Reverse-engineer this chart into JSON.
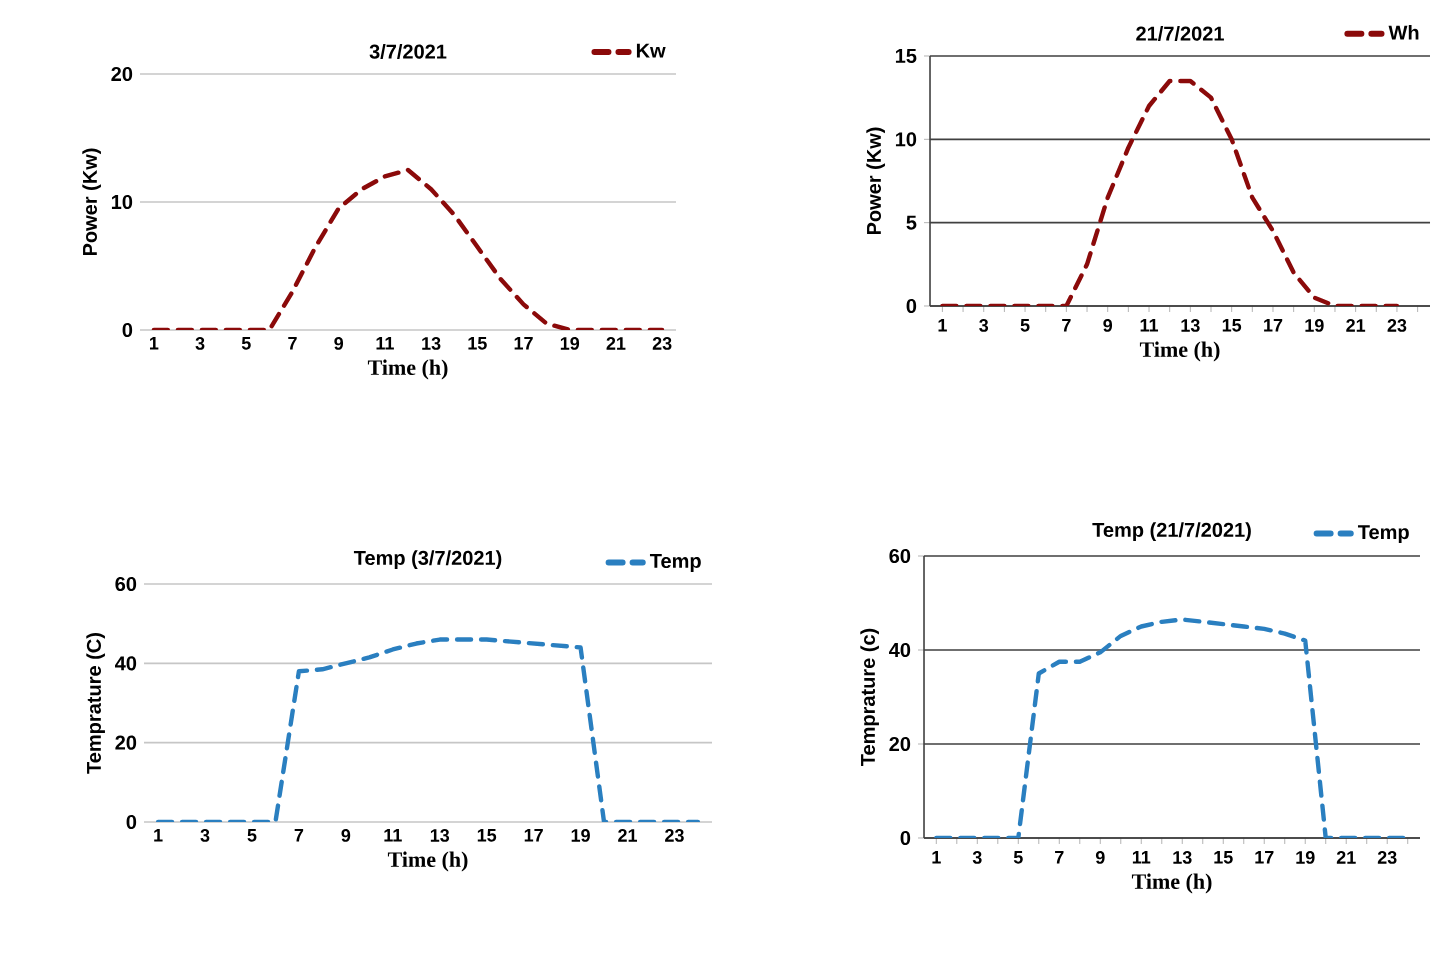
{
  "chart_data": [
    {
      "type": "line",
      "title": "3/7/2021",
      "xlabel": "Time (h)",
      "ylabel": "Power (Kw)",
      "categories": [
        "1",
        null,
        "3",
        null,
        "5",
        null,
        "7",
        null,
        "9",
        null,
        "11",
        null,
        "13",
        null,
        "15",
        null,
        "17",
        null,
        "19",
        null,
        "21",
        null,
        "23"
      ],
      "series": [
        {
          "name": "Kw",
          "color": "#8b0a0a",
          "values": [
            0,
            0,
            0,
            0,
            0,
            0,
            3,
            6.5,
            9.5,
            11,
            12,
            12.5,
            11,
            9,
            6.5,
            4,
            2,
            0.5,
            0,
            0,
            0,
            0,
            0
          ]
        }
      ],
      "ylim": [
        0,
        20
      ],
      "yticks": [
        0,
        10,
        20
      ],
      "grid": "y",
      "legend": "top right",
      "line_style": "dashed"
    },
    {
      "type": "line",
      "title": "21/7/2021",
      "xlabel": "Time (h)",
      "ylabel": "Power (Kw)",
      "categories": [
        "1",
        null,
        "3",
        null,
        "5",
        null,
        "7",
        null,
        "9",
        null,
        "11",
        null,
        "13",
        null,
        "15",
        null,
        "17",
        null,
        "19",
        null,
        "21",
        null,
        "23",
        null
      ],
      "series": [
        {
          "name": "Wh",
          "color": "#8b0a0a",
          "values": [
            0,
            0,
            0,
            0,
            0,
            0,
            0,
            2.5,
            6.5,
            9.5,
            12,
            13.5,
            13.5,
            12.5,
            10,
            6.5,
            4.5,
            2,
            0.5,
            0,
            0,
            0,
            0,
            null
          ]
        }
      ],
      "ylim": [
        0,
        15
      ],
      "yticks": [
        0,
        5,
        10,
        15
      ],
      "grid": "y",
      "legend": "top right",
      "line_style": "dashed"
    },
    {
      "type": "line",
      "title": "Temp (3/7/2021)",
      "xlabel": "Time (h)",
      "ylabel": "Temprature (C)",
      "categories": [
        "1",
        null,
        "3",
        null,
        "5",
        null,
        "7",
        null,
        "9",
        null,
        "11",
        null,
        "13",
        null,
        "15",
        null,
        "17",
        null,
        "19",
        null,
        "21",
        null,
        "23",
        null
      ],
      "series": [
        {
          "name": "Temp",
          "color": "#2a7fc0",
          "values": [
            0,
            0,
            0,
            0,
            0,
            0,
            38,
            38.5,
            40,
            41.5,
            43.5,
            45,
            46,
            46,
            46,
            45.5,
            45,
            44.5,
            44,
            0,
            0,
            0,
            0,
            0
          ]
        }
      ],
      "ylim": [
        0,
        60
      ],
      "yticks": [
        0,
        20,
        40,
        60
      ],
      "grid": "y",
      "legend": "top right",
      "line_style": "dashed"
    },
    {
      "type": "line",
      "title": "Temp (21/7/2021)",
      "xlabel": "Time (h)",
      "ylabel": "Temprature (c)",
      "categories": [
        "1",
        null,
        "3",
        null,
        "5",
        null,
        "7",
        null,
        "9",
        null,
        "11",
        null,
        "13",
        null,
        "15",
        null,
        "17",
        null,
        "19",
        null,
        "21",
        null,
        "23",
        null
      ],
      "series": [
        {
          "name": "Temp",
          "color": "#2a7fc0",
          "values": [
            0,
            0,
            0,
            0,
            0,
            35,
            37.5,
            37.5,
            39.5,
            43,
            45,
            46,
            46.5,
            46,
            45.5,
            45,
            44.5,
            43.5,
            42,
            0,
            0,
            0,
            0,
            0
          ]
        }
      ],
      "ylim": [
        0,
        60
      ],
      "yticks": [
        0,
        20,
        40,
        60
      ],
      "grid": "y",
      "legend": "top right",
      "line_style": "dashed"
    }
  ]
}
